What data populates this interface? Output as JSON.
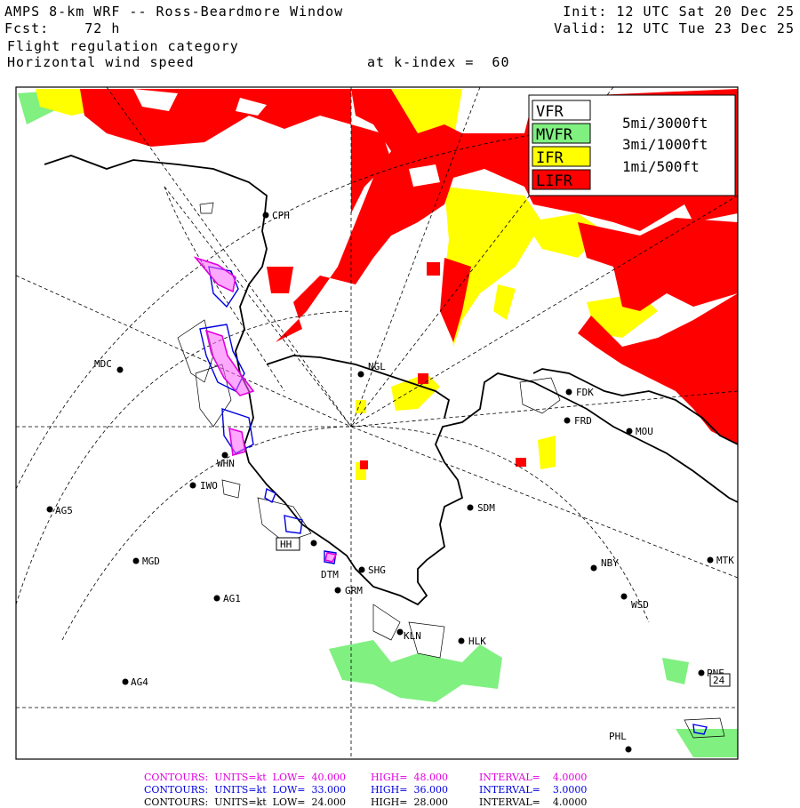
{
  "header": {
    "title": "AMPS 8-km WRF -- Ross-Beardmore Window",
    "forecast": "Fcst:    72 h",
    "init": "Init: 12 UTC Sat 20 Dec 25",
    "valid": "Valid: 12 UTC Tue 23 Dec 25",
    "field1": "Flight regulation category",
    "field2": "Horizontal wind speed",
    "level": "at k-index =  60"
  },
  "legend": {
    "items": [
      {
        "code": "VFR",
        "limit": "5mi/3000ft",
        "color": "#ffffff"
      },
      {
        "code": "MVFR",
        "limit": "3mi/1000ft",
        "color": "#80f080"
      },
      {
        "code": "IFR",
        "limit": "1mi/500ft",
        "color": "#ffff00"
      },
      {
        "code": "LIFR",
        "limit": "",
        "color": "#ff0000"
      }
    ]
  },
  "stations": [
    {
      "code": "CPH"
    },
    {
      "code": "NGL"
    },
    {
      "code": "MDC"
    },
    {
      "code": "FDK"
    },
    {
      "code": "FRD"
    },
    {
      "code": "MOU"
    },
    {
      "code": "WHN"
    },
    {
      "code": "IWO"
    },
    {
      "code": "AG5"
    },
    {
      "code": "SDM"
    },
    {
      "code": "MGD"
    },
    {
      "code": "NBY"
    },
    {
      "code": "MTK"
    },
    {
      "code": "AG1"
    },
    {
      "code": "DTM"
    },
    {
      "code": "GRM"
    },
    {
      "code": "SHG"
    },
    {
      "code": "WSD"
    },
    {
      "code": "KLN"
    },
    {
      "code": "HLK"
    },
    {
      "code": "AG4"
    },
    {
      "code": "PNE"
    },
    {
      "code": "PHL"
    }
  ],
  "boxed_labels": {
    "box1": "24",
    "box2": "HH"
  },
  "contours": [
    {
      "label": "CONTOURS:",
      "units": "UNITS=kt",
      "low": "LOW=  40.000",
      "high": "HIGH=  48.000",
      "interval": "INTERVAL=    4.0000",
      "color": "#e000e0"
    },
    {
      "label": "CONTOURS:",
      "units": "UNITS=kt",
      "low": "LOW=  33.000",
      "high": "HIGH=  36.000",
      "interval": "INTERVAL=    3.0000",
      "color": "#0000e0"
    },
    {
      "label": "CONTOURS:",
      "units": "UNITS=kt",
      "low": "LOW=  24.000",
      "high": "HIGH=  28.000",
      "interval": "INTERVAL=    4.0000",
      "color": "#000000"
    }
  ]
}
